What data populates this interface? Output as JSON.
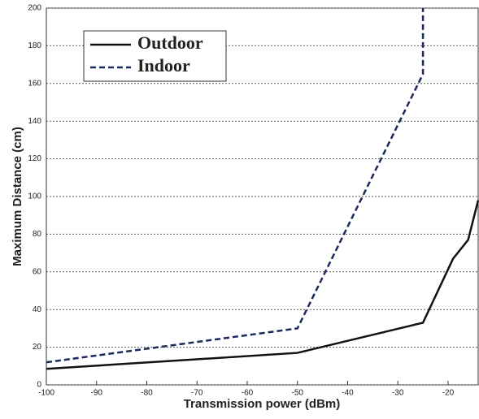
{
  "chart_data": {
    "type": "line",
    "xlabel": "Transmission power (dBm)",
    "ylabel": "Maximum Distance (cm)",
    "series": [
      {
        "name": "Outdoor",
        "color": "#111111",
        "dash": "solid",
        "x": [
          -100,
          -50,
          -25,
          -19,
          -16,
          -14
        ],
        "values": [
          8.5,
          17,
          33,
          67,
          77,
          98
        ]
      },
      {
        "name": "Indoor",
        "color": "#1a2a5c",
        "dash": "dashed",
        "x": [
          -100,
          -50,
          -25,
          -25
        ],
        "values": [
          12,
          30,
          165,
          200
        ]
      }
    ],
    "xlim": [
      -100,
      -14
    ],
    "xticks": [
      -100,
      -90,
      -80,
      -70,
      -60,
      -50,
      -40,
      -30,
      -20
    ],
    "ylim": [
      0,
      200
    ],
    "yticks": [
      0,
      20,
      40,
      60,
      80,
      100,
      120,
      140,
      160,
      180,
      200
    ],
    "grid": true,
    "legend": "upper left"
  }
}
